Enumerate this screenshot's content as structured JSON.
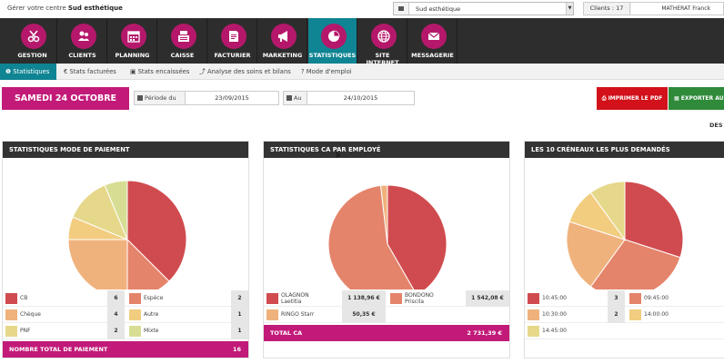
{
  "topbar": {
    "title_prefix": "Gérer votre centre ",
    "title_center": "Sud esthétique",
    "center_select_value": "Sud esthétique",
    "clients_count": "Clients : 17",
    "user_name": "MATHERAT Franck"
  },
  "nav": {
    "items": [
      {
        "label": "GESTION",
        "icon": "scissors-icon"
      },
      {
        "label": "CLIENTS",
        "icon": "users-icon"
      },
      {
        "label": "PLANNING",
        "icon": "calendar-icon"
      },
      {
        "label": "CAISSE",
        "icon": "cash-register-icon"
      },
      {
        "label": "FACTURIER",
        "icon": "invoice-icon"
      },
      {
        "label": "MARKETING",
        "icon": "megaphone-icon"
      },
      {
        "label": "STATISTIQUES",
        "icon": "pie-chart-icon",
        "active": true
      },
      {
        "label": "SITE INTERNET",
        "icon": "globe-icon"
      },
      {
        "label": "MESSAGERIE",
        "icon": "envelope-icon"
      }
    ],
    "accent": "#b5186b",
    "active_bg": "#0f8493"
  },
  "subtabs": {
    "items": [
      {
        "label": "Statistiques",
        "icon": "info-icon",
        "active": true
      },
      {
        "label": "Stats facturées",
        "icon": "euro-icon"
      },
      {
        "label": "Stats encaissées",
        "icon": "money-icon"
      },
      {
        "label": "Analyse des soins et bilans",
        "icon": "chart-icon"
      },
      {
        "label": "Mode d'emploi",
        "icon": "help-icon"
      }
    ]
  },
  "daterow": {
    "date_label": "SAMEDI 24 OCTOBRE 2015",
    "period_from_label": "Période du",
    "period_from": "23/09/2015",
    "period_to_label": "Au",
    "period_to": "24/10/2015",
    "pdf_button": "IMPRIMER LE PDF",
    "export_button": "EXPORTER AU",
    "desc_label": "DES"
  },
  "panels": [
    {
      "title": "STATISTIQUES MODE DE PAIEMENT",
      "footer_label": "NOMBRE TOTAL DE PAIEMENT",
      "footer_value": "16",
      "legend": [
        {
          "label": "CB",
          "value": "6",
          "color": "#d04b4f"
        },
        {
          "label": "Espèce",
          "value": "2",
          "color": "#e4846b"
        },
        {
          "label": "Chèque",
          "value": "4",
          "color": "#f0b27d"
        },
        {
          "label": "Autre",
          "value": "1",
          "color": "#f2cd7f"
        },
        {
          "label": "PNF",
          "value": "2",
          "color": "#e6d88a"
        },
        {
          "label": "Mixte",
          "value": "1",
          "color": "#d7de94"
        }
      ]
    },
    {
      "title": "STATISTIQUES CA PAR EMPLOYÉ",
      "footer_label": "TOTAL CA",
      "footer_value": "2 731,39 €",
      "legend": [
        {
          "label": "OLAGNON",
          "label2": "Laetitia",
          "value": "1 138,96 €",
          "color": "#d04b4f"
        },
        {
          "label": "BONDONO",
          "label2": "Priscila",
          "value": "1 542,08 €",
          "color": "#e4846b"
        },
        {
          "label": "RINGO Starr",
          "label2": "",
          "value": "50,35 €",
          "color": "#f0b27d"
        }
      ]
    },
    {
      "title": "LES 10 CRÉNEAUX LES PLUS DEMANDÉS",
      "legend": [
        {
          "label": "10:45:00",
          "value": "3",
          "color": "#d04b4f"
        },
        {
          "label": "09:45:00",
          "value": "",
          "color": "#e4846b"
        },
        {
          "label": "10:30:00",
          "value": "2",
          "color": "#f0b27d"
        },
        {
          "label": "14:00:00",
          "value": "",
          "color": "#f2cd7f"
        },
        {
          "label": "14:45:00",
          "value": "",
          "color": "#e6d88a"
        }
      ]
    }
  ],
  "chart_data": [
    {
      "type": "pie",
      "title": "STATISTIQUES MODE DE PAIEMENT",
      "categories": [
        "CB",
        "Espèce",
        "Chèque",
        "Autre",
        "PNF",
        "Mixte"
      ],
      "values": [
        6,
        2,
        4,
        1,
        2,
        1
      ],
      "colors": [
        "#d04b4f",
        "#e4846b",
        "#f0b27d",
        "#f2cd7f",
        "#e6d88a",
        "#d7de94"
      ]
    },
    {
      "type": "pie",
      "title": "STATISTIQUES CA PAR EMPLOYÉ",
      "categories": [
        "OLAGNON Laetitia",
        "BONDONO Priscila",
        "RINGO Starr"
      ],
      "values": [
        1138.96,
        1542.08,
        50.35
      ],
      "colors": [
        "#d04b4f",
        "#e4846b",
        "#f0b27d"
      ]
    },
    {
      "type": "pie",
      "title": "LES 10 CRÉNEAUX LES PLUS DEMANDÉS",
      "categories": [
        "10:45:00",
        "09:45:00",
        "10:30:00",
        "14:00:00",
        "14:45:00"
      ],
      "values": [
        3,
        3,
        2,
        1,
        1
      ],
      "colors": [
        "#d04b4f",
        "#e4846b",
        "#f0b27d",
        "#f2cd7f",
        "#e6d88a"
      ]
    }
  ]
}
